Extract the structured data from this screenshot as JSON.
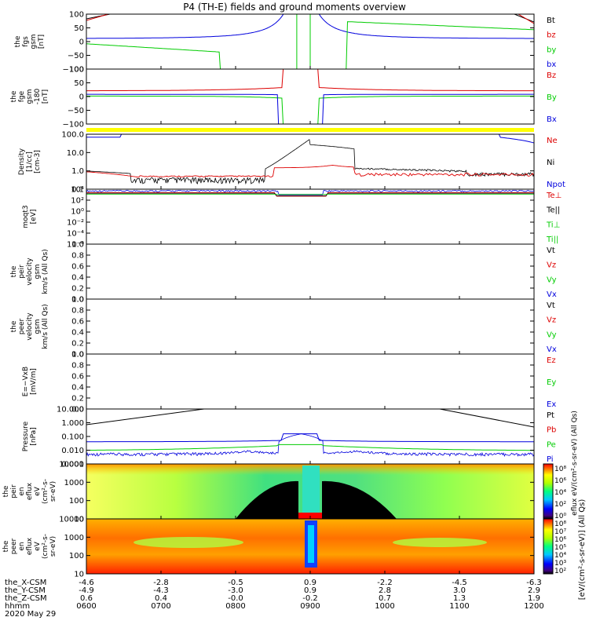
{
  "title": "P4 (TH-E) fields and ground moments overview",
  "colors": {
    "black": "#000000",
    "red": "#dd0000",
    "green": "#00cc00",
    "blue": "#0000dd",
    "yellow": "#ffff00"
  },
  "chart_data": [
    {
      "type": "line",
      "panel": "fgs",
      "ylabel_lines": [
        "the",
        "fgs",
        "gsm",
        "[nT]"
      ],
      "yticks": [
        "100",
        "50",
        "0",
        "−50",
        "−100"
      ],
      "ylim": [
        -100,
        100
      ],
      "legend": [
        {
          "label": "Bt",
          "color": "black"
        },
        {
          "label": "bz",
          "color": "red"
        },
        {
          "label": "by",
          "color": "green"
        },
        {
          "label": "bx",
          "color": "blue"
        }
      ]
    },
    {
      "type": "line",
      "panel": "fge",
      "ylabel_lines": [
        "the",
        "fge",
        "gsm",
        "-180",
        "[nT]"
      ],
      "yticks": [
        "100",
        "50",
        "0",
        "−50",
        "−100"
      ],
      "ylim": [
        -120,
        120
      ],
      "legend": [
        {
          "label": "Bz",
          "color": "red"
        },
        {
          "label": "By",
          "color": "green"
        },
        {
          "label": "Bx",
          "color": "blue"
        }
      ]
    },
    {
      "type": "line",
      "panel": "density",
      "ylog": true,
      "ylabel_lines": [
        "Density",
        "[1/cc]",
        "[cm-3]"
      ],
      "yticks": [
        "100.0",
        "10.0",
        "1.0",
        "0.1"
      ],
      "legend": [
        {
          "label": "Ne",
          "color": "red"
        },
        {
          "label": "Ni",
          "color": "black"
        },
        {
          "label": "Npot",
          "color": "blue"
        }
      ]
    },
    {
      "type": "line",
      "panel": "temperature",
      "ylog": true,
      "ylabel_lines": [
        "moqt3",
        "[eV]"
      ],
      "yticks": [
        "10⁴",
        "10²",
        "10⁰",
        "10⁻²",
        "10⁻⁴",
        "10⁻⁶"
      ],
      "legend": [
        {
          "label": "Te⊥",
          "color": "red"
        },
        {
          "label": "Te||",
          "color": "black"
        },
        {
          "label": "Ti⊥",
          "color": "green"
        },
        {
          "label": "Ti||",
          "color": "green"
        }
      ]
    },
    {
      "type": "line",
      "panel": "peir_velocity",
      "ylabel_lines": [
        "the",
        "peir",
        "velocity",
        "gsm",
        "km/s (All Qs)"
      ],
      "yticks": [
        "1.0",
        "0.8",
        "0.6",
        "0.4",
        "0.2",
        "0.0"
      ],
      "ylim": [
        0,
        1
      ],
      "legend": [
        {
          "label": "Vt",
          "color": "black"
        },
        {
          "label": "Vz",
          "color": "red"
        },
        {
          "label": "Vy",
          "color": "green"
        },
        {
          "label": "Vx",
          "color": "blue"
        }
      ]
    },
    {
      "type": "line",
      "panel": "peer_velocity",
      "ylabel_lines": [
        "the",
        "peer",
        "velocity",
        "gsm",
        "km/s (All Qs)"
      ],
      "yticks": [
        "1.0",
        "0.8",
        "0.6",
        "0.4",
        "0.2",
        "0.0"
      ],
      "ylim": [
        0,
        1
      ],
      "legend": [
        {
          "label": "Vt",
          "color": "black"
        },
        {
          "label": "Vz",
          "color": "red"
        },
        {
          "label": "Vy",
          "color": "green"
        },
        {
          "label": "Vx",
          "color": "blue"
        }
      ]
    },
    {
      "type": "line",
      "panel": "efield",
      "ylabel_lines": [
        "E=−VxB",
        "[mV/m]"
      ],
      "yticks": [
        "1.0",
        "0.8",
        "0.6",
        "0.4",
        "0.2",
        "0.0"
      ],
      "ylim": [
        0,
        1
      ],
      "legend": [
        {
          "label": "Ez",
          "color": "red"
        },
        {
          "label": "Ey",
          "color": "green"
        },
        {
          "label": "Ex",
          "color": "blue"
        }
      ]
    },
    {
      "type": "line",
      "panel": "pressure",
      "ylog": true,
      "ylabel_lines": [
        "Pressure",
        "[nPa]"
      ],
      "yticks": [
        "10.000",
        "1.000",
        "0.100",
        "0.010",
        "0.001"
      ],
      "legend": [
        {
          "label": "Pt",
          "color": "black"
        },
        {
          "label": "Pb",
          "color": "red"
        },
        {
          "label": "Pe",
          "color": "green"
        },
        {
          "label": "Pi",
          "color": "blue"
        }
      ]
    },
    {
      "type": "heatmap",
      "panel": "peir_spec",
      "ylabel_lines": [
        "the",
        "peir",
        "en",
        "eflux",
        "eV",
        "(cm²-s-",
        "sr-eV)"
      ],
      "yticks": [
        "10000",
        "1000",
        "100",
        "10"
      ],
      "colorbar_ticks": [
        "10⁸",
        "10⁶",
        "10⁴",
        "10²",
        "10⁰"
      ]
    },
    {
      "type": "heatmap",
      "panel": "peer_spec",
      "ylabel_lines": [
        "the",
        "peer",
        "en",
        "eflux",
        "eV",
        "(cm²-s-",
        "sr-eV)"
      ],
      "yticks": [
        "10000",
        "1000",
        "100",
        "10"
      ],
      "colorbar_ticks": [
        "10⁸",
        "10⁷",
        "10⁶",
        "10⁵",
        "10⁴",
        "10³",
        "10²"
      ]
    }
  ],
  "colorbar_label": "[eV/(cm²-s-sr-eV)] (All Qs)",
  "colorbar_label_peir": "eflux eV/(cm²-s-sr-eV) (All Qs)",
  "x_axis": {
    "row_labels": [
      "the_X-CSM",
      "the_Y-CSM",
      "the_Z-CSM",
      "hhmm",
      "2020 May 29"
    ],
    "columns": [
      {
        "x": "-4.6",
        "y": "-4.9",
        "z": "0.6",
        "hhmm": "0600"
      },
      {
        "x": "-2.8",
        "y": "-4.3",
        "z": "0.4",
        "hhmm": "0700"
      },
      {
        "x": "-0.5",
        "y": "-3.0",
        "z": "-0.0",
        "hhmm": "0800"
      },
      {
        "x": "0.9",
        "y": "0.9",
        "z": "-0.2",
        "hhmm": "0900"
      },
      {
        "x": "-2.2",
        "y": "2.8",
        "z": "0.7",
        "hhmm": "1000"
      },
      {
        "x": "-4.5",
        "y": "3.0",
        "z": "1.3",
        "hhmm": "1100"
      },
      {
        "x": "-6.3",
        "y": "2.9",
        "z": "1.9",
        "hhmm": "1200"
      }
    ]
  }
}
